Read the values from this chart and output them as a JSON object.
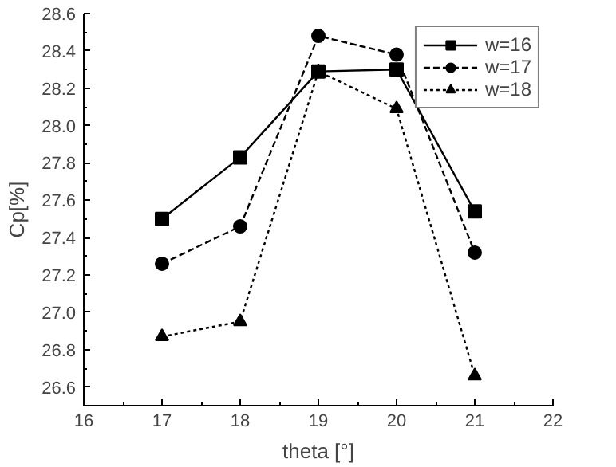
{
  "chart_data": {
    "type": "line",
    "xlabel": "theta [°]",
    "ylabel": "Cp[%]",
    "x": [
      17,
      18,
      19,
      20,
      21
    ],
    "series": [
      {
        "name": "w=16",
        "color": "#000000",
        "values": [
          27.5,
          27.83,
          28.29,
          28.3,
          27.54
        ],
        "marker": "square",
        "line_style": "solid"
      },
      {
        "name": "w=17",
        "color": "#000000",
        "values": [
          27.26,
          27.46,
          28.48,
          28.38,
          27.32
        ],
        "marker": "circle",
        "line_style": "dashed"
      },
      {
        "name": "w=18",
        "color": "#000000",
        "values": [
          26.87,
          26.95,
          28.29,
          28.09,
          26.66
        ],
        "marker": "triangle",
        "line_style": "dotted"
      }
    ],
    "xlim": [
      16,
      22
    ],
    "xticks": [
      16,
      17,
      18,
      19,
      20,
      21,
      22
    ],
    "ylim": [
      26.5,
      28.6
    ],
    "yticks": [
      26.6,
      26.8,
      {
        "value": 27,
        "label": "27.0"
      },
      27.2,
      27.4,
      27.6,
      27.8,
      {
        "value": 28,
        "label": "28.0"
      },
      28.2,
      28.4,
      28.6
    ],
    "grid": false,
    "legend": "top right"
  }
}
